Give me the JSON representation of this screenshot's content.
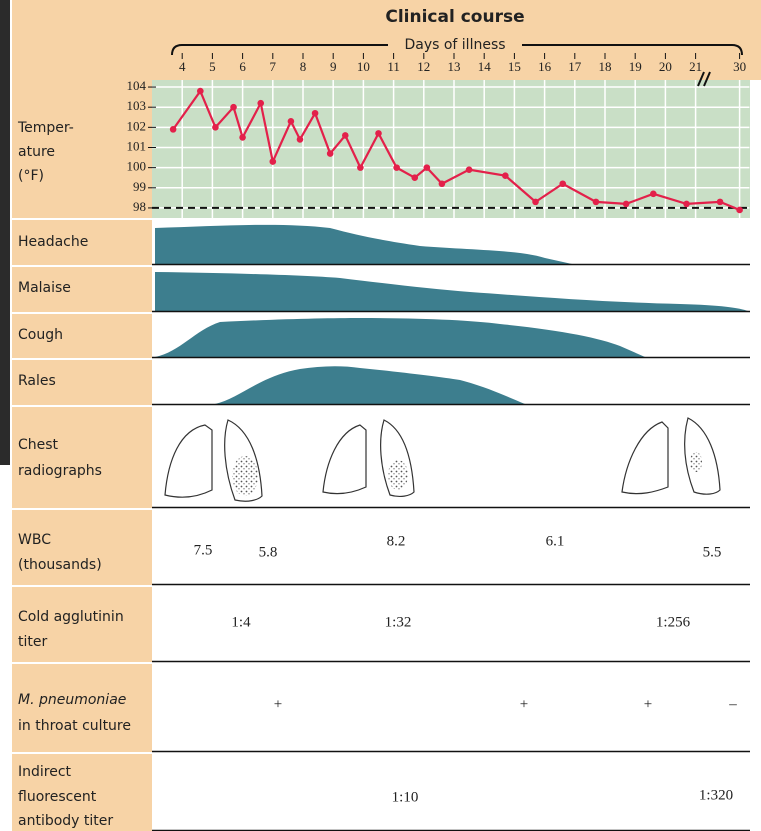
{
  "chart_data": {
    "type": "line",
    "title": "Clinical course",
    "x_label": "Days of illness",
    "xlim": [
      3,
      32
    ],
    "xticks": [
      4,
      5,
      6,
      7,
      8,
      9,
      10,
      11,
      12,
      13,
      14,
      15,
      16,
      17,
      18,
      19,
      20,
      21,
      30
    ],
    "ylim": [
      97.5,
      104.35
    ],
    "yticks": [
      98,
      99,
      100,
      101,
      102,
      103,
      104
    ],
    "reference_line": 98,
    "grid": true,
    "series": [
      {
        "color": "#e3204a",
        "x": [
          3.7,
          4.6,
          5.1,
          5.7,
          6.0,
          6.6,
          7.0,
          7.6,
          7.9,
          8.4,
          8.9,
          9.4,
          9.9,
          10.5,
          11.1,
          11.7,
          12.1,
          12.6,
          13.5,
          14.7,
          15.7,
          16.6,
          17.7,
          18.7,
          19.6,
          20.7,
          26,
          30
        ],
        "values": [
          101.9,
          103.8,
          102.0,
          103.0,
          101.5,
          103.2,
          100.3,
          102.3,
          101.4,
          102.7,
          100.7,
          101.6,
          100.0,
          101.7,
          100.0,
          99.5,
          100.0,
          99.2,
          99.9,
          99.6,
          98.3,
          99.2,
          98.3,
          98.2,
          98.7,
          98.2,
          98.3,
          97.9
        ]
      }
    ]
  },
  "rows": [
    {
      "label": [
        "Temper-",
        "ature",
        "(°F)"
      ]
    },
    {
      "label": [
        "Headache"
      ]
    },
    {
      "label": [
        "Malaise"
      ]
    },
    {
      "label": [
        "Cough"
      ]
    },
    {
      "label": [
        "Rales"
      ]
    },
    {
      "label": [
        "Chest",
        "radiographs"
      ]
    },
    {
      "label": [
        "WBC",
        "(thousands)"
      ],
      "values": [
        7.5,
        5.8,
        8.2,
        6.1,
        5.5
      ]
    },
    {
      "label": [
        "Cold agglutinin",
        "titer"
      ],
      "values": [
        "1:4",
        "1:32",
        "1:256"
      ]
    },
    {
      "label": [
        "M. pneumoniae",
        "in throat culture"
      ],
      "values": [
        "+",
        "+",
        "+",
        "–"
      ]
    },
    {
      "label": [
        "Indirect",
        "fluorescent",
        "antibody titer"
      ],
      "values": [
        "1:10",
        "1:320"
      ]
    }
  ]
}
